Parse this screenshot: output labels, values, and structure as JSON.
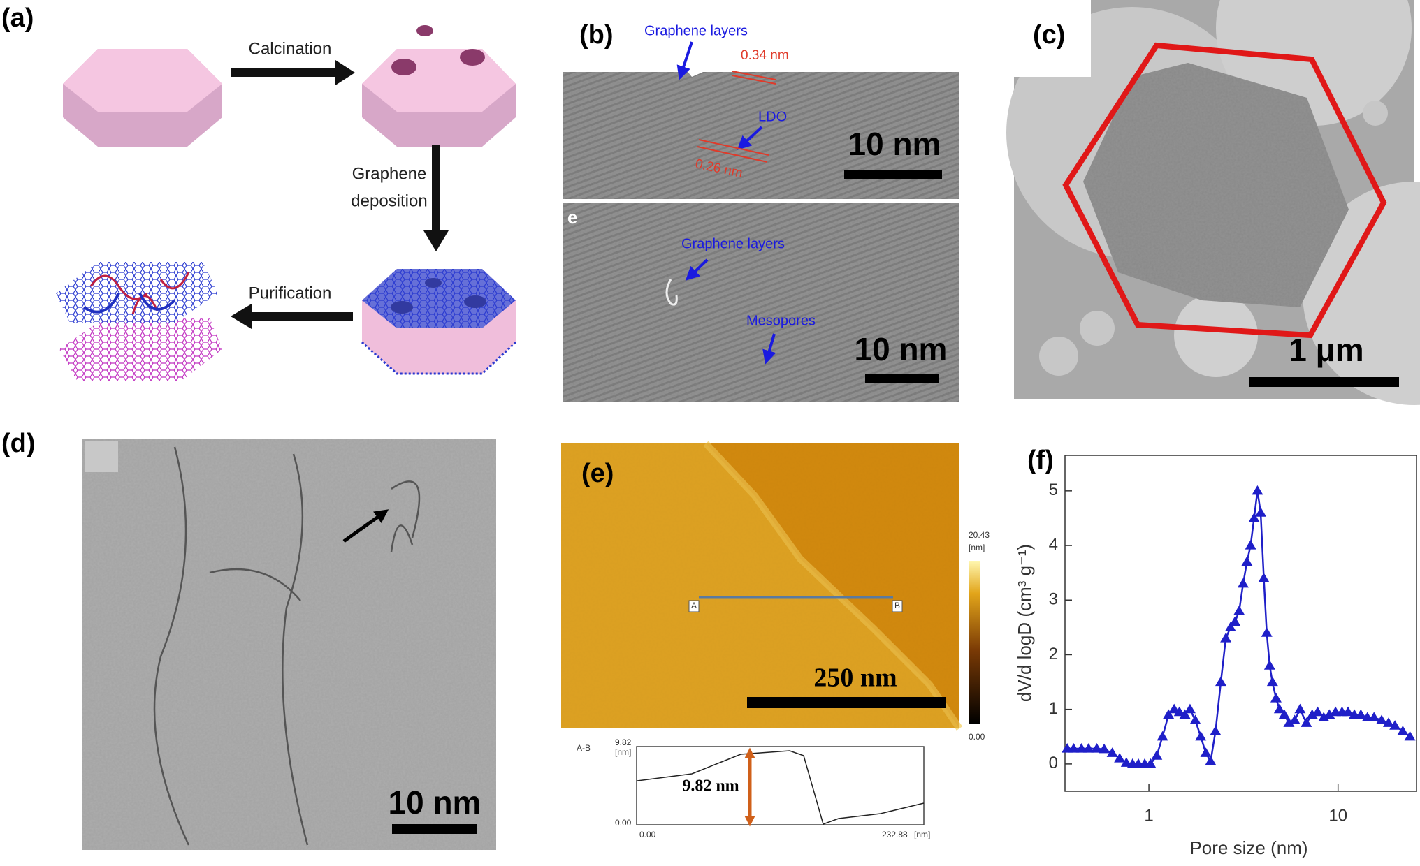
{
  "panel_a": {
    "label": "(a)",
    "calcination": "Calcination",
    "deposition": [
      "Graphene",
      "deposition"
    ],
    "purification": "Purification"
  },
  "panel_b": {
    "label": "(b)",
    "top": {
      "graphene": "Graphene layers",
      "spacing1": "0.34 nm",
      "ldo": "LDO",
      "spacing2": "0.26 nm",
      "scale": "10 nm"
    },
    "bottom": {
      "label": "e",
      "graphene": "Graphene layers",
      "mesopores": "Mesopores",
      "scale": "10 nm"
    }
  },
  "panel_c": {
    "label": "(c)",
    "scale": "1 μm"
  },
  "panel_d": {
    "label": "(d)",
    "scale": "10 nm"
  },
  "panel_e": {
    "label": "(e)",
    "scale": "250 nm",
    "colorbar": {
      "max": "20.43",
      "unit": "[nm]",
      "min": "0.00"
    },
    "line_ends": [
      "A",
      "B"
    ],
    "profile": {
      "title": "A-B",
      "y_max": "9.82",
      "y_unit": "[nm]",
      "y_min": "0.00",
      "x_min": "0.00",
      "x_max": "232.88",
      "x_unit": "[nm]",
      "height": "9.82 nm"
    }
  },
  "chart_data": {
    "type": "line",
    "label": "(f)",
    "xlabel": "Pore size (nm)",
    "ylabel": "dV/d logD (cm³ g⁻¹)",
    "xscale": "log",
    "xlim": [
      0.36,
      26
    ],
    "xticks": [
      1,
      10
    ],
    "ylim": [
      -0.5,
      5.65
    ],
    "yticks": [
      0,
      1,
      2,
      3,
      4,
      5
    ],
    "color": "#1f1fc8",
    "marker": "triangle",
    "x": [
      0.37,
      0.4,
      0.44,
      0.48,
      0.53,
      0.58,
      0.64,
      0.7,
      0.76,
      0.82,
      0.88,
      0.95,
      1.02,
      1.1,
      1.18,
      1.27,
      1.36,
      1.45,
      1.55,
      1.65,
      1.76,
      1.88,
      2.0,
      2.12,
      2.25,
      2.4,
      2.55,
      2.7,
      2.85,
      3.0,
      3.15,
      3.3,
      3.45,
      3.6,
      3.75,
      3.9,
      4.05,
      4.2,
      4.35,
      4.5,
      4.7,
      4.9,
      5.2,
      5.5,
      5.9,
      6.3,
      6.8,
      7.3,
      7.8,
      8.4,
      9.0,
      9.7,
      10.5,
      11.3,
      12.2,
      13.2,
      14.3,
      15.5,
      17,
      18.5,
      20,
      22,
      24
    ],
    "values": [
      0.28,
      0.28,
      0.28,
      0.28,
      0.28,
      0.27,
      0.2,
      0.1,
      0.02,
      0,
      0,
      0,
      0,
      0.15,
      0.5,
      0.9,
      1.0,
      0.95,
      0.9,
      1.0,
      0.8,
      0.5,
      0.2,
      0.05,
      0.6,
      1.5,
      2.3,
      2.5,
      2.6,
      2.8,
      3.3,
      3.7,
      4.0,
      4.5,
      5.0,
      4.6,
      3.4,
      2.4,
      1.8,
      1.5,
      1.2,
      1.0,
      0.9,
      0.75,
      0.8,
      1.0,
      0.75,
      0.9,
      0.95,
      0.85,
      0.9,
      0.95,
      0.95,
      0.95,
      0.9,
      0.9,
      0.85,
      0.85,
      0.8,
      0.75,
      0.7,
      0.6,
      0.5
    ]
  }
}
